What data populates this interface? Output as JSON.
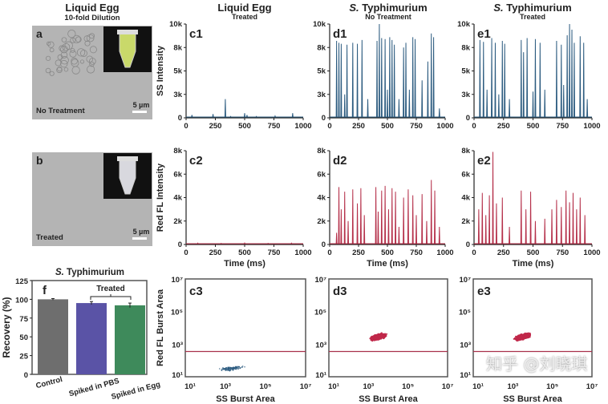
{
  "columns": [
    {
      "title": "Liquid Egg",
      "subtitle": "10-fold Dilution"
    },
    {
      "title": "Liquid Egg",
      "subtitle": "Treated"
    },
    {
      "title_italic": "S.",
      "title": " Typhimurium",
      "subtitle": "No Treatment"
    },
    {
      "title_italic": "S.",
      "title": " Typhimurium",
      "subtitle": "Treated"
    }
  ],
  "images": [
    {
      "panel": "a",
      "label": "No Treatment",
      "scale": "5 µm",
      "tube_color": "#c9d96a"
    },
    {
      "panel": "b",
      "label": "Treated",
      "scale": "5 µm",
      "tube_color": "#d8d8de"
    }
  ],
  "watermark": "知乎 @刘晓琪",
  "chart_data": [
    {
      "id": "c1",
      "type": "line",
      "color": "#2d5c80",
      "xlabel": "",
      "ylabel": "SS Intensity",
      "xlim": [
        0,
        1000
      ],
      "ylim": [
        0,
        10000
      ],
      "xticks": [
        "0",
        "250",
        "500",
        "750",
        "1000"
      ],
      "yticks": [
        "0",
        "3k",
        "5k",
        "8k",
        "10k"
      ],
      "spikes": [
        [
          50,
          300
        ],
        [
          230,
          400
        ],
        [
          335,
          2000
        ],
        [
          380,
          150
        ],
        [
          500,
          500
        ],
        [
          520,
          300
        ],
        [
          600,
          150
        ],
        [
          760,
          200
        ],
        [
          910,
          500
        ]
      ]
    },
    {
      "id": "d1",
      "type": "line",
      "color": "#2d5c80",
      "xlabel": "",
      "ylabel": "",
      "xlim": [
        0,
        1000
      ],
      "ylim": [
        0,
        10000
      ],
      "xticks": [
        "0",
        "250",
        "500",
        "750",
        "1000"
      ],
      "yticks": [
        "0",
        "3k",
        "5k",
        "8k",
        "10k"
      ],
      "spikes": [
        [
          60,
          8200
        ],
        [
          80,
          8000
        ],
        [
          100,
          7900
        ],
        [
          130,
          2500
        ],
        [
          150,
          7800
        ],
        [
          200,
          8000
        ],
        [
          240,
          7900
        ],
        [
          280,
          8300
        ],
        [
          330,
          2000
        ],
        [
          410,
          8200
        ],
        [
          430,
          10000
        ],
        [
          450,
          8500
        ],
        [
          480,
          8400
        ],
        [
          500,
          3000
        ],
        [
          520,
          8600
        ],
        [
          540,
          8300
        ],
        [
          560,
          7800
        ],
        [
          600,
          2000
        ],
        [
          640,
          7500
        ],
        [
          660,
          8000
        ],
        [
          690,
          3000
        ],
        [
          720,
          8600
        ],
        [
          740,
          8400
        ],
        [
          800,
          4000
        ],
        [
          850,
          6000
        ],
        [
          880,
          9000
        ],
        [
          900,
          8600
        ],
        [
          950,
          1000
        ]
      ]
    },
    {
      "id": "e1",
      "type": "line",
      "color": "#2d5c80",
      "xlabel": "",
      "ylabel": "",
      "xlim": [
        0,
        1000
      ],
      "ylim": [
        0,
        10000
      ],
      "xticks": [
        "0",
        "250",
        "500",
        "750",
        "1000"
      ],
      "yticks": [
        "0",
        "3k",
        "5k",
        "8k",
        "10k"
      ],
      "spikes": [
        [
          50,
          8300
        ],
        [
          80,
          8100
        ],
        [
          110,
          3000
        ],
        [
          150,
          8500
        ],
        [
          180,
          8000
        ],
        [
          210,
          2500
        ],
        [
          240,
          8200
        ],
        [
          260,
          7900
        ],
        [
          300,
          2000
        ],
        [
          400,
          8300
        ],
        [
          420,
          7000
        ],
        [
          450,
          8500
        ],
        [
          500,
          2800
        ],
        [
          520,
          8400
        ],
        [
          560,
          8000
        ],
        [
          600,
          3000
        ],
        [
          700,
          8200
        ],
        [
          740,
          7800
        ],
        [
          760,
          3500
        ],
        [
          790,
          8800
        ],
        [
          810,
          10000
        ],
        [
          830,
          9400
        ],
        [
          850,
          8000
        ],
        [
          900,
          8700
        ],
        [
          930,
          8000
        ],
        [
          960,
          2000
        ]
      ]
    },
    {
      "id": "c2",
      "type": "line",
      "color": "#b5304a",
      "xlabel": "Time (ms)",
      "ylabel": "Red FL Intensity",
      "xlim": [
        0,
        1000
      ],
      "ylim": [
        0,
        8000
      ],
      "xticks": [
        "0",
        "250",
        "500",
        "750",
        "1000"
      ],
      "yticks": [
        "0",
        "2k",
        "4k",
        "6k",
        "8k"
      ],
      "spikes": [
        [
          100,
          120
        ],
        [
          300,
          100
        ],
        [
          500,
          130
        ],
        [
          700,
          100
        ],
        [
          900,
          120
        ]
      ]
    },
    {
      "id": "d2",
      "type": "line",
      "color": "#b5304a",
      "xlabel": "Time (ms)",
      "ylabel": "",
      "xlim": [
        0,
        1000
      ],
      "ylim": [
        0,
        8000
      ],
      "xticks": [
        "0",
        "250",
        "500",
        "750",
        "1000"
      ],
      "yticks": [
        "0",
        "2k",
        "4k",
        "6k",
        "8k"
      ],
      "spikes": [
        [
          60,
          1000
        ],
        [
          80,
          4900
        ],
        [
          100,
          3000
        ],
        [
          130,
          4500
        ],
        [
          160,
          2000
        ],
        [
          200,
          4700
        ],
        [
          240,
          3500
        ],
        [
          270,
          4800
        ],
        [
          300,
          2500
        ],
        [
          400,
          4900
        ],
        [
          420,
          2800
        ],
        [
          450,
          4600
        ],
        [
          480,
          5000
        ],
        [
          510,
          3000
        ],
        [
          540,
          4800
        ],
        [
          570,
          4500
        ],
        [
          600,
          1500
        ],
        [
          640,
          4000
        ],
        [
          680,
          4700
        ],
        [
          720,
          4200
        ],
        [
          750,
          2500
        ],
        [
          800,
          4300
        ],
        [
          840,
          2000
        ],
        [
          880,
          5500
        ],
        [
          910,
          4600
        ],
        [
          950,
          1500
        ]
      ]
    },
    {
      "id": "e2",
      "type": "line",
      "color": "#b5304a",
      "xlabel": "Time (ms)",
      "ylabel": "",
      "xlim": [
        0,
        1000
      ],
      "ylim": [
        0,
        8000
      ],
      "xticks": [
        "0",
        "250",
        "500",
        "750",
        "1000"
      ],
      "yticks": [
        "0",
        "2k",
        "4k",
        "6k",
        "8k"
      ],
      "spikes": [
        [
          40,
          3000
        ],
        [
          70,
          4400
        ],
        [
          100,
          2500
        ],
        [
          130,
          4200
        ],
        [
          160,
          7900
        ],
        [
          190,
          3500
        ],
        [
          240,
          4000
        ],
        [
          300,
          1500
        ],
        [
          400,
          4600
        ],
        [
          440,
          3000
        ],
        [
          480,
          4500
        ],
        [
          520,
          2000
        ],
        [
          600,
          2200
        ],
        [
          660,
          3000
        ],
        [
          700,
          3800
        ],
        [
          740,
          3200
        ],
        [
          780,
          4600
        ],
        [
          810,
          3600
        ],
        [
          840,
          4400
        ],
        [
          870,
          3000
        ],
        [
          900,
          4000
        ],
        [
          940,
          2500
        ]
      ]
    },
    {
      "id": "c3",
      "type": "scatter",
      "color": "#2d5c80",
      "xlabel": "SS Burst Area",
      "ylabel": "Red FL Burst Area",
      "xlim_log10": [
        1,
        7
      ],
      "ylim_log10": [
        1,
        7
      ],
      "xticks": [
        "10¹",
        "10³",
        "10⁵",
        "10⁷"
      ],
      "yticks": [
        "10¹",
        "10³",
        "10⁵",
        "10⁷"
      ],
      "threshold_log10": 2.55,
      "cluster": {
        "cx_log10": 3.3,
        "cy_log10": 1.5,
        "sx": 0.45,
        "sy": 0.15,
        "n": 120
      }
    },
    {
      "id": "d3",
      "type": "scatter",
      "color": "#c0284a",
      "xlabel": "SS Burst Area",
      "ylabel": "",
      "xlim_log10": [
        1,
        7
      ],
      "ylim_log10": [
        1,
        7
      ],
      "xticks": [
        "10¹",
        "10³",
        "10⁵",
        "10⁷"
      ],
      "yticks": [
        "10¹",
        "10³",
        "10⁵",
        "10⁷"
      ],
      "threshold_log10": 2.55,
      "cluster": {
        "cx_log10": 3.5,
        "cy_log10": 3.45,
        "sx": 0.3,
        "sy": 0.22,
        "n": 1200
      }
    },
    {
      "id": "e3",
      "type": "scatter",
      "color": "#c0284a",
      "xlabel": "SS Burst Area",
      "ylabel": "",
      "xlim_log10": [
        1,
        7
      ],
      "ylim_log10": [
        1,
        7
      ],
      "xticks": [
        "10¹",
        "10³",
        "10⁵",
        "10⁷"
      ],
      "yticks": [
        "10¹",
        "10³",
        "10⁵",
        "10⁷"
      ],
      "threshold_log10": 2.55,
      "cluster": {
        "cx_log10": 3.5,
        "cy_log10": 3.45,
        "sx": 0.3,
        "sy": 0.22,
        "n": 1200
      }
    },
    {
      "id": "f",
      "type": "bar",
      "title_italic": "S.",
      "title": " Typhimurium",
      "ylabel": "Recovery (%)",
      "ylim": [
        0,
        125
      ],
      "yticks": [
        "0",
        "25",
        "50",
        "75",
        "100",
        "125"
      ],
      "categories": [
        "Control",
        "Spiked in PBS",
        "Spiked in Egg"
      ],
      "values": [
        100,
        95,
        92
      ],
      "errors": [
        1,
        2,
        3
      ],
      "colors": [
        "#6e6e6e",
        "#5a53a6",
        "#3e8a5b"
      ],
      "bracket_label": "Treated"
    }
  ]
}
